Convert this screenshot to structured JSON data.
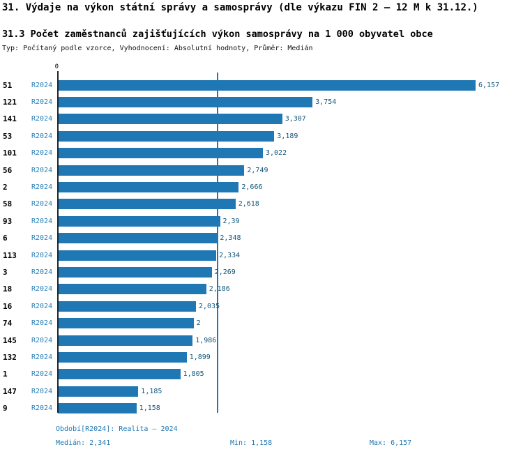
{
  "title": "31. Výdaje na výkon státní správy a samosprávy (dle výkazu FIN 2 – 12 M k 31.12.)",
  "subtitle": "31.3 Počet zaměstnanců zajišťujících výkon samosprávy na 1 000 obyvatel obce",
  "meta": "Typ: Počítaný podle vzorce, Vyhodnocení: Absolutní hodnoty, Průměr: Medián",
  "chart_data": {
    "type": "bar",
    "orientation": "horizontal",
    "series_label": "R2024",
    "axis_zero_label": "0",
    "bar_color": "#1f77b4",
    "median_color": "#1f77b4",
    "xlim": [
      0,
      6.157
    ],
    "median_value": 2.341,
    "min_value": 1.158,
    "max_value": 6.157,
    "categories": [
      "51",
      "121",
      "141",
      "53",
      "101",
      "56",
      "2",
      "58",
      "93",
      "6",
      "113",
      "3",
      "18",
      "16",
      "74",
      "145",
      "132",
      "1",
      "147",
      "9"
    ],
    "values": [
      6.157,
      3.754,
      3.307,
      3.189,
      3.022,
      2.749,
      2.666,
      2.618,
      2.39,
      2.348,
      2.334,
      2.269,
      2.186,
      2.035,
      2.0,
      1.986,
      1.899,
      1.805,
      1.185,
      1.158
    ],
    "value_labels": [
      "6,157",
      "3,754",
      "3,307",
      "3,189",
      "3,022",
      "2,749",
      "2,666",
      "2,618",
      "2,39",
      "2,348",
      "2,334",
      "2,269",
      "2,186",
      "2,035",
      "2",
      "1,986",
      "1,899",
      "1,805",
      "1,185",
      "1,158"
    ]
  },
  "footer": {
    "period": "Období[R2024]: Realita – 2024",
    "median": "Medián: 2,341",
    "min": "Min: 1,158",
    "max": "Max: 6,157"
  }
}
